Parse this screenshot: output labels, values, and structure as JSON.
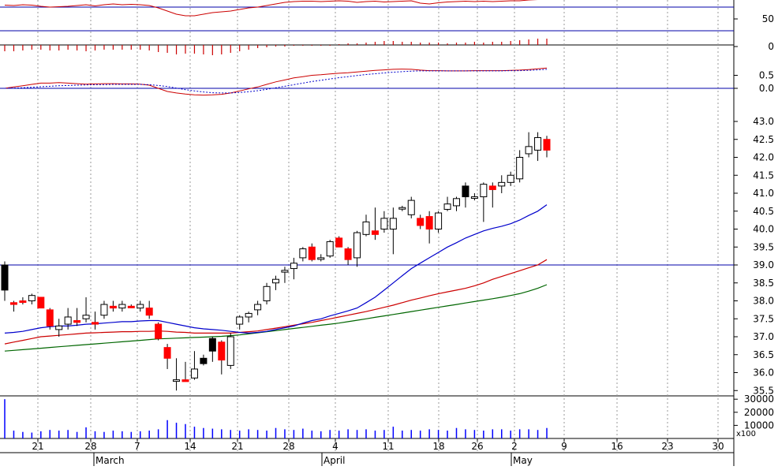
{
  "chart_data": {
    "type": "candlestick",
    "colors": {
      "up": "#ffffff",
      "down": "#ff0000",
      "down_black": "#000000",
      "ma_short": "#0000cc",
      "ma_mid": "#cc0000",
      "ma_long": "#006600",
      "reference_line": "#0000aa",
      "grid": "#999999",
      "volume": "#0000ff",
      "oscillator": "#cc0000"
    },
    "x_axis": {
      "day_labels": [
        "21",
        "28",
        "7",
        "14",
        "21",
        "28",
        "4",
        "11",
        "18",
        "26",
        "2",
        "9",
        "16",
        "23",
        "30"
      ],
      "month_labels": [
        "March",
        "April",
        "May"
      ]
    },
    "price_panel": {
      "y_ticks": [
        "43.0",
        "42.5",
        "42.0",
        "41.5",
        "41.0",
        "40.5",
        "40.0",
        "39.5",
        "39.0",
        "38.5",
        "38.0",
        "37.5",
        "37.0",
        "36.5",
        "36.0",
        "35.5"
      ],
      "ylim": [
        35.0,
        43.2
      ],
      "reference_level": 39.0,
      "candles": [
        {
          "o": 39.0,
          "h": 39.1,
          "l": 38.0,
          "c": 38.3,
          "color": "black"
        },
        {
          "o": 37.95,
          "h": 38.0,
          "l": 37.7,
          "c": 37.9,
          "color": "red"
        },
        {
          "o": 38.0,
          "h": 38.1,
          "l": 37.9,
          "c": 38.0,
          "color": "red"
        },
        {
          "o": 38.0,
          "h": 38.2,
          "l": 37.9,
          "c": 38.15,
          "color": "up"
        },
        {
          "o": 38.1,
          "h": 38.1,
          "l": 37.8,
          "c": 37.8,
          "color": "red"
        },
        {
          "o": 37.75,
          "h": 37.8,
          "l": 37.2,
          "c": 37.3,
          "color": "red"
        },
        {
          "o": 37.3,
          "h": 37.5,
          "l": 37.0,
          "c": 37.2,
          "color": "up"
        },
        {
          "o": 37.35,
          "h": 37.8,
          "l": 37.2,
          "c": 37.55,
          "color": "up"
        },
        {
          "o": 37.45,
          "h": 37.8,
          "l": 37.3,
          "c": 37.4,
          "color": "red"
        },
        {
          "o": 37.5,
          "h": 38.1,
          "l": 37.4,
          "c": 37.6,
          "color": "up"
        },
        {
          "o": 37.4,
          "h": 37.7,
          "l": 37.2,
          "c": 37.35,
          "color": "red"
        },
        {
          "o": 37.6,
          "h": 38.0,
          "l": 37.5,
          "c": 37.9,
          "color": "up"
        },
        {
          "o": 37.85,
          "h": 38.0,
          "l": 37.7,
          "c": 37.8,
          "color": "red"
        },
        {
          "o": 37.8,
          "h": 38.0,
          "l": 37.7,
          "c": 37.9,
          "color": "up"
        },
        {
          "o": 37.85,
          "h": 37.9,
          "l": 37.8,
          "c": 37.85,
          "color": "red"
        },
        {
          "o": 37.9,
          "h": 38.0,
          "l": 37.7,
          "c": 37.8,
          "color": "up"
        },
        {
          "o": 37.8,
          "h": 38.0,
          "l": 37.5,
          "c": 37.6,
          "color": "red"
        },
        {
          "o": 37.35,
          "h": 37.4,
          "l": 36.9,
          "c": 36.95,
          "color": "red"
        },
        {
          "o": 36.7,
          "h": 36.8,
          "l": 36.1,
          "c": 36.4,
          "color": "red"
        },
        {
          "o": 35.8,
          "h": 36.4,
          "l": 35.5,
          "c": 35.8,
          "color": "up"
        },
        {
          "o": 35.8,
          "h": 36.3,
          "l": 35.75,
          "c": 35.75,
          "color": "red"
        },
        {
          "o": 35.85,
          "h": 36.6,
          "l": 35.8,
          "c": 36.1,
          "color": "up"
        },
        {
          "o": 36.25,
          "h": 36.5,
          "l": 36.2,
          "c": 36.4,
          "color": "black"
        },
        {
          "o": 36.95,
          "h": 37.0,
          "l": 36.3,
          "c": 36.6,
          "color": "black"
        },
        {
          "o": 36.85,
          "h": 36.9,
          "l": 35.95,
          "c": 36.35,
          "color": "red"
        },
        {
          "o": 36.2,
          "h": 37.1,
          "l": 36.1,
          "c": 37.0,
          "color": "up"
        },
        {
          "o": 37.35,
          "h": 37.6,
          "l": 37.2,
          "c": 37.55,
          "color": "up"
        },
        {
          "o": 37.55,
          "h": 37.7,
          "l": 37.4,
          "c": 37.65,
          "color": "up"
        },
        {
          "o": 37.75,
          "h": 38.0,
          "l": 37.6,
          "c": 37.9,
          "color": "up"
        },
        {
          "o": 38.0,
          "h": 38.5,
          "l": 37.9,
          "c": 38.4,
          "color": "up"
        },
        {
          "o": 38.5,
          "h": 38.7,
          "l": 38.3,
          "c": 38.6,
          "color": "up"
        },
        {
          "o": 38.8,
          "h": 38.95,
          "l": 38.5,
          "c": 38.85,
          "color": "up"
        },
        {
          "o": 38.9,
          "h": 39.2,
          "l": 38.6,
          "c": 39.05,
          "color": "up"
        },
        {
          "o": 39.2,
          "h": 39.5,
          "l": 39.1,
          "c": 39.45,
          "color": "up"
        },
        {
          "o": 39.5,
          "h": 39.6,
          "l": 39.1,
          "c": 39.15,
          "color": "red"
        },
        {
          "o": 39.2,
          "h": 39.3,
          "l": 39.1,
          "c": 39.2,
          "color": "up"
        },
        {
          "o": 39.25,
          "h": 39.7,
          "l": 39.2,
          "c": 39.65,
          "color": "up"
        },
        {
          "o": 39.75,
          "h": 39.8,
          "l": 39.5,
          "c": 39.5,
          "color": "red"
        },
        {
          "o": 39.45,
          "h": 39.5,
          "l": 39.0,
          "c": 39.15,
          "color": "red"
        },
        {
          "o": 39.2,
          "h": 39.95,
          "l": 38.95,
          "c": 39.9,
          "color": "up"
        },
        {
          "o": 39.85,
          "h": 40.4,
          "l": 39.8,
          "c": 40.2,
          "color": "up"
        },
        {
          "o": 39.95,
          "h": 40.6,
          "l": 39.7,
          "c": 39.85,
          "color": "red"
        },
        {
          "o": 40.0,
          "h": 40.5,
          "l": 39.9,
          "c": 40.3,
          "color": "up"
        },
        {
          "o": 40.0,
          "h": 40.6,
          "l": 39.3,
          "c": 40.3,
          "color": "up"
        },
        {
          "o": 40.6,
          "h": 40.65,
          "l": 40.5,
          "c": 40.6,
          "color": "up"
        },
        {
          "o": 40.4,
          "h": 40.9,
          "l": 40.3,
          "c": 40.8,
          "color": "up"
        },
        {
          "o": 40.3,
          "h": 40.4,
          "l": 40.0,
          "c": 40.1,
          "color": "red"
        },
        {
          "o": 40.35,
          "h": 40.5,
          "l": 39.6,
          "c": 40.0,
          "color": "red"
        },
        {
          "o": 40.0,
          "h": 40.5,
          "l": 39.9,
          "c": 40.45,
          "color": "up"
        },
        {
          "o": 40.55,
          "h": 40.9,
          "l": 40.5,
          "c": 40.7,
          "color": "up"
        },
        {
          "o": 40.65,
          "h": 40.9,
          "l": 40.5,
          "c": 40.85,
          "color": "up"
        },
        {
          "o": 41.2,
          "h": 41.3,
          "l": 40.6,
          "c": 40.9,
          "color": "black"
        },
        {
          "o": 40.9,
          "h": 41.0,
          "l": 40.8,
          "c": 40.9,
          "color": "up"
        },
        {
          "o": 40.9,
          "h": 41.3,
          "l": 40.2,
          "c": 41.25,
          "color": "up"
        },
        {
          "o": 41.2,
          "h": 41.3,
          "l": 40.6,
          "c": 41.1,
          "color": "red"
        },
        {
          "o": 41.2,
          "h": 41.5,
          "l": 41.0,
          "c": 41.3,
          "color": "up"
        },
        {
          "o": 41.3,
          "h": 41.6,
          "l": 41.2,
          "c": 41.5,
          "color": "up"
        },
        {
          "o": 41.4,
          "h": 42.2,
          "l": 41.3,
          "c": 42.0,
          "color": "up"
        },
        {
          "o": 42.1,
          "h": 42.7,
          "l": 42.0,
          "c": 42.3,
          "color": "up"
        },
        {
          "o": 42.2,
          "h": 42.7,
          "l": 41.9,
          "c": 42.55,
          "color": "up"
        },
        {
          "o": 42.5,
          "h": 42.6,
          "l": 42.0,
          "c": 42.2,
          "color": "red"
        }
      ],
      "ma_short": [
        37.1,
        37.12,
        37.15,
        37.2,
        37.25,
        37.28,
        37.3,
        37.3,
        37.32,
        37.35,
        37.36,
        37.38,
        37.4,
        37.42,
        37.42,
        37.44,
        37.45,
        37.45,
        37.4,
        37.35,
        37.3,
        37.25,
        37.22,
        37.2,
        37.18,
        37.15,
        37.12,
        37.1,
        37.12,
        37.15,
        37.2,
        37.25,
        37.3,
        37.38,
        37.45,
        37.5,
        37.58,
        37.65,
        37.72,
        37.8,
        37.95,
        38.1,
        38.3,
        38.5,
        38.7,
        38.9,
        39.05,
        39.2,
        39.35,
        39.5,
        39.62,
        39.75,
        39.85,
        39.95,
        40.02,
        40.08,
        40.15,
        40.25,
        40.38,
        40.5,
        40.68
      ],
      "ma_mid": [
        36.8,
        36.85,
        36.9,
        36.95,
        37.0,
        37.02,
        37.04,
        37.06,
        37.08,
        37.1,
        37.11,
        37.12,
        37.13,
        37.14,
        37.14,
        37.15,
        37.15,
        37.16,
        37.15,
        37.13,
        37.12,
        37.1,
        37.1,
        37.1,
        37.1,
        37.1,
        37.12,
        37.14,
        37.16,
        37.2,
        37.24,
        37.28,
        37.32,
        37.36,
        37.4,
        37.45,
        37.5,
        37.55,
        37.6,
        37.65,
        37.7,
        37.76,
        37.82,
        37.88,
        37.95,
        38.02,
        38.08,
        38.14,
        38.2,
        38.25,
        38.3,
        38.35,
        38.42,
        38.5,
        38.6,
        38.68,
        38.76,
        38.84,
        38.92,
        39.0,
        39.15
      ],
      "ma_long": [
        36.6,
        36.62,
        36.64,
        36.66,
        36.68,
        36.7,
        36.72,
        36.74,
        36.76,
        36.78,
        36.8,
        36.82,
        36.84,
        36.86,
        36.88,
        36.9,
        36.92,
        36.94,
        36.95,
        36.96,
        36.97,
        36.98,
        36.99,
        37.0,
        37.01,
        37.03,
        37.05,
        37.08,
        37.11,
        37.14,
        37.17,
        37.2,
        37.23,
        37.26,
        37.29,
        37.32,
        37.35,
        37.38,
        37.42,
        37.46,
        37.5,
        37.54,
        37.58,
        37.62,
        37.66,
        37.7,
        37.74,
        37.78,
        37.82,
        37.86,
        37.9,
        37.94,
        37.98,
        38.02,
        38.06,
        38.1,
        38.15,
        38.2,
        38.27,
        38.35,
        38.45
      ]
    },
    "stochastic_panel": {
      "y_ticks": [
        "50"
      ],
      "ylim": [
        0,
        100
      ],
      "level_lines": [
        20,
        80
      ],
      "values": [
        85,
        84,
        86,
        85,
        82,
        80,
        81,
        82,
        84,
        86,
        83,
        86,
        88,
        86,
        87,
        86,
        84,
        78,
        70,
        62,
        58,
        58,
        62,
        66,
        68,
        70,
        74,
        78,
        80,
        84,
        88,
        92,
        94,
        95,
        95,
        94,
        95,
        96,
        95,
        92,
        94,
        95,
        93,
        94,
        95,
        96,
        90,
        88,
        91,
        93,
        94,
        95,
        94,
        95,
        94,
        95,
        96,
        96,
        98,
        99,
        99
      ]
    },
    "momentum_panel": {
      "y_ticks": [
        "0"
      ],
      "bars": [
        -8,
        -8,
        -7,
        -6,
        -6,
        -7,
        -7,
        -6,
        -7,
        -8,
        -7,
        -6,
        -6,
        -6,
        -6,
        -6,
        -7,
        -9,
        -10,
        -12,
        -11,
        -11,
        -12,
        -13,
        -12,
        -10,
        -8,
        -6,
        -4,
        -3,
        -2,
        -2,
        -1,
        -1,
        -1,
        -1,
        -1,
        1,
        2,
        2,
        3,
        4,
        5,
        5,
        4,
        4,
        3,
        3,
        3,
        2,
        3,
        3,
        4,
        3,
        4,
        4,
        5,
        6,
        7,
        8,
        8
      ]
    },
    "oscillator_panel": {
      "y_ticks": [
        "0.5",
        "0.0"
      ],
      "ylim": [
        -0.3,
        1.1
      ],
      "line": [
        0.0,
        0.05,
        0.1,
        0.15,
        0.2,
        0.2,
        0.22,
        0.2,
        0.18,
        0.16,
        0.17,
        0.18,
        0.18,
        0.17,
        0.17,
        0.16,
        0.12,
        0.0,
        -0.12,
        -0.18,
        -0.22,
        -0.25,
        -0.26,
        -0.25,
        -0.23,
        -0.18,
        -0.1,
        -0.02,
        0.05,
        0.15,
        0.25,
        0.32,
        0.4,
        0.45,
        0.5,
        0.52,
        0.55,
        0.58,
        0.6,
        0.63,
        0.66,
        0.69,
        0.71,
        0.73,
        0.74,
        0.73,
        0.7,
        0.68,
        0.68,
        0.67,
        0.67,
        0.67,
        0.68,
        0.68,
        0.68,
        0.68,
        0.69,
        0.7,
        0.72,
        0.75,
        0.78
      ],
      "signal": [
        0.0,
        0.01,
        0.02,
        0.04,
        0.06,
        0.08,
        0.1,
        0.11,
        0.12,
        0.13,
        0.14,
        0.14,
        0.15,
        0.15,
        0.15,
        0.15,
        0.14,
        0.11,
        0.07,
        0.01,
        -0.05,
        -0.1,
        -0.14,
        -0.17,
        -0.18,
        -0.18,
        -0.16,
        -0.13,
        -0.09,
        -0.04,
        0.02,
        0.08,
        0.14,
        0.2,
        0.26,
        0.31,
        0.36,
        0.41,
        0.45,
        0.49,
        0.53,
        0.56,
        0.59,
        0.62,
        0.64,
        0.66,
        0.67,
        0.67,
        0.67,
        0.67,
        0.67,
        0.67,
        0.67,
        0.67,
        0.67,
        0.67,
        0.68,
        0.68,
        0.69,
        0.71,
        0.73
      ]
    },
    "volume_panel": {
      "y_ticks": [
        "30000",
        "20000",
        "10000"
      ],
      "unit_label": "x100",
      "ylim": [
        0,
        35000
      ],
      "bars": [
        30000,
        6000,
        5000,
        4500,
        5500,
        6500,
        6000,
        6500,
        5000,
        8500,
        5500,
        5000,
        6000,
        5500,
        5000,
        5500,
        6000,
        7000,
        14000,
        12000,
        11000,
        9000,
        8000,
        7500,
        7000,
        6500,
        6000,
        7000,
        6500,
        6000,
        8000,
        7000,
        6500,
        7500,
        6000,
        5500,
        6500,
        6000,
        7000,
        6500,
        7000,
        6000,
        6500,
        9000,
        6000,
        6500,
        6000,
        7000,
        6500,
        6000,
        8000,
        7000,
        6500,
        6000,
        7000,
        7000,
        6000,
        7000,
        7000,
        6500,
        8000
      ]
    }
  }
}
